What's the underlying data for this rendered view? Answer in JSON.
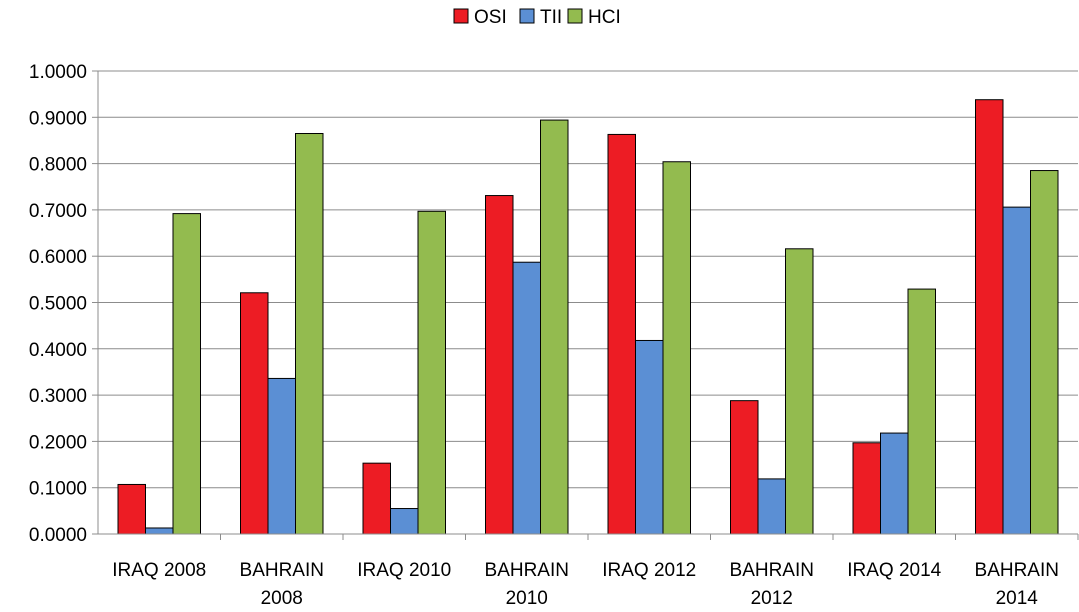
{
  "chart_data": {
    "type": "bar",
    "categories": [
      [
        "IRAQ 2008"
      ],
      [
        "BAHRAIN",
        "2008"
      ],
      [
        "IRAQ 2010"
      ],
      [
        "BAHRAIN",
        "2010"
      ],
      [
        "IRAQ 2012"
      ],
      [
        "BAHRAIN",
        "2012"
      ],
      [
        "IRAQ 2014"
      ],
      [
        "BAHRAIN",
        "2014"
      ]
    ],
    "series": [
      {
        "name": "OSI",
        "color": "#ED1C24",
        "values": [
          0.107,
          0.521,
          0.153,
          0.731,
          0.863,
          0.288,
          0.197,
          0.938
        ]
      },
      {
        "name": "TII",
        "color": "#5B8FD4",
        "values": [
          0.013,
          0.336,
          0.055,
          0.587,
          0.418,
          0.119,
          0.218,
          0.706
        ]
      },
      {
        "name": "HCI",
        "color": "#93BB4F",
        "values": [
          0.692,
          0.865,
          0.697,
          0.894,
          0.804,
          0.616,
          0.529,
          0.785
        ]
      }
    ],
    "ylim": [
      0,
      1
    ],
    "yticks": [
      "0.0000",
      "0.1000",
      "0.2000",
      "0.3000",
      "0.4000",
      "0.5000",
      "0.6000",
      "0.7000",
      "0.8000",
      "0.9000",
      "1.0000"
    ],
    "title": "",
    "xlabel": "",
    "ylabel": "",
    "legend_position": "top-center",
    "grid": "horizontal"
  }
}
